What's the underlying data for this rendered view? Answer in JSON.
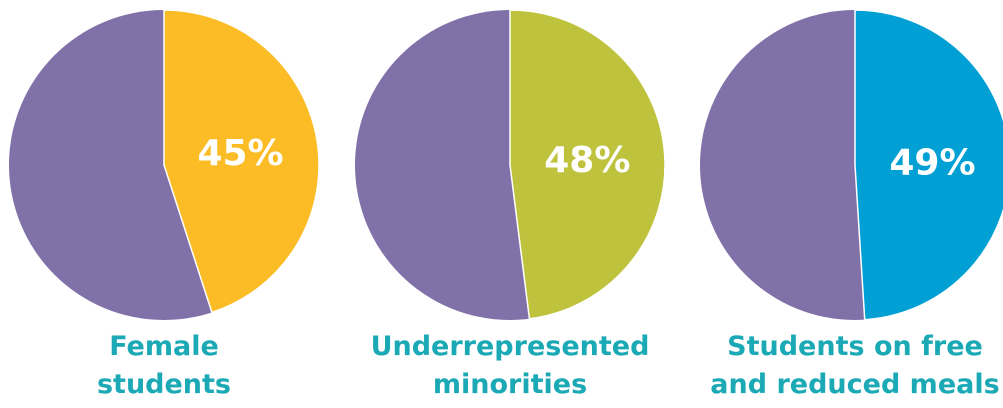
{
  "chart_data": [
    {
      "type": "pie",
      "title": "Female students",
      "values": [
        45
      ],
      "value_labels": [
        "45%"
      ],
      "color": "#fbbc25",
      "rest_color": "#8071a8"
    },
    {
      "type": "pie",
      "title": "Underrepresented minorities",
      "values": [
        48
      ],
      "value_labels": [
        "48%"
      ],
      "color": "#bec23c",
      "rest_color": "#8071a8"
    },
    {
      "type": "pie",
      "title": "Students on free and reduced meals",
      "values": [
        49
      ],
      "value_labels": [
        "49%"
      ],
      "color": "#009fd4",
      "rest_color": "#8071a8"
    }
  ]
}
